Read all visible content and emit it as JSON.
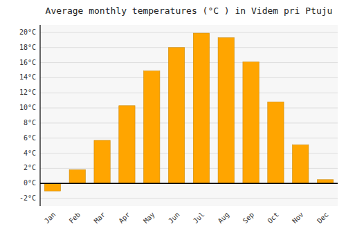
{
  "chart_data": {
    "type": "bar",
    "title": "Average monthly temperatures (°C ) in Videm pri Ptuju",
    "categories": [
      "Jan",
      "Feb",
      "Mar",
      "Apr",
      "May",
      "Jun",
      "Jul",
      "Aug",
      "Sep",
      "Oct",
      "Nov",
      "Dec"
    ],
    "values": [
      -1.0,
      1.8,
      5.7,
      10.3,
      14.9,
      18.0,
      19.9,
      19.3,
      16.1,
      10.8,
      5.1,
      0.5
    ],
    "color": "#FFA500",
    "ylim": [
      -3,
      21
    ],
    "yticks": [
      {
        "value": -2,
        "label": "-2°C"
      },
      {
        "value": 0,
        "label": "0°C"
      },
      {
        "value": 2,
        "label": "2°C"
      },
      {
        "value": 4,
        "label": "4°C"
      },
      {
        "value": 6,
        "label": "6°C"
      },
      {
        "value": 8,
        "label": "8°C"
      },
      {
        "value": 10,
        "label": "10°C"
      },
      {
        "value": 12,
        "label": "12°C"
      },
      {
        "value": 14,
        "label": "14°C"
      },
      {
        "value": 16,
        "label": "16°C"
      },
      {
        "value": 18,
        "label": "18°C"
      },
      {
        "value": 20,
        "label": "20°C"
      }
    ],
    "grid": true
  }
}
